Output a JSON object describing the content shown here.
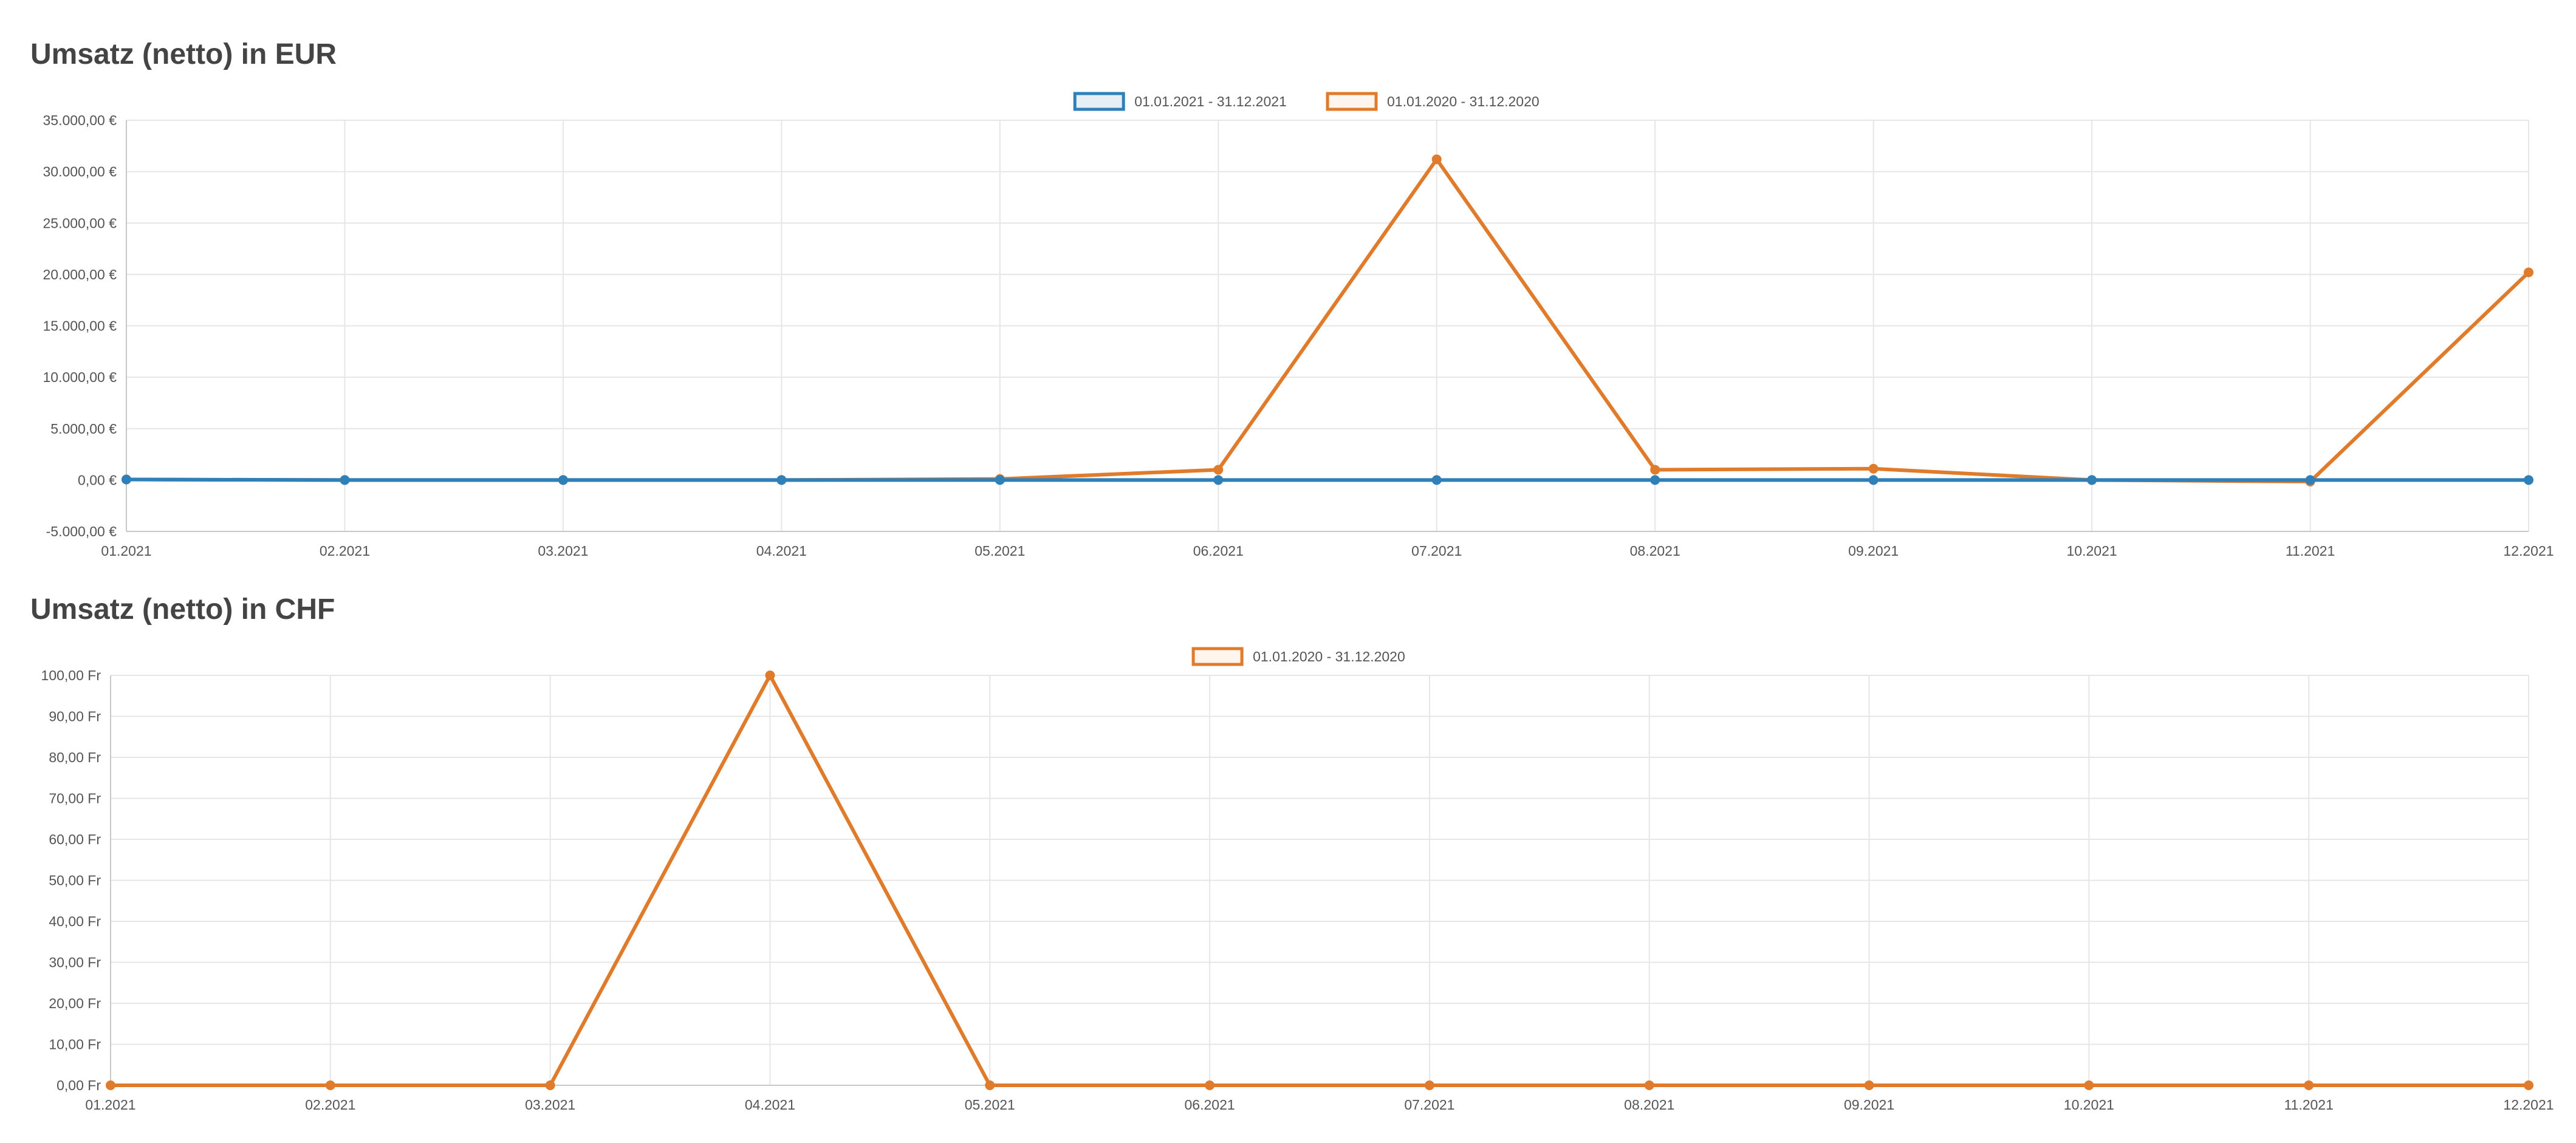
{
  "colors": {
    "series_2021": "#2f7fb8",
    "series_2020": "#e07b2c"
  },
  "chart_data": [
    {
      "type": "line",
      "title": "Umsatz (netto) in EUR",
      "x": [
        "01.2021",
        "02.2021",
        "03.2021",
        "04.2021",
        "05.2021",
        "06.2021",
        "07.2021",
        "08.2021",
        "09.2021",
        "10.2021",
        "11.2021",
        "12.2021"
      ],
      "ylim": [
        -5000,
        35000
      ],
      "yticks": [
        35000,
        30000,
        25000,
        20000,
        15000,
        10000,
        5000,
        0,
        -5000
      ],
      "ytick_labels": [
        "35.000,00 €",
        "30.000,00 €",
        "25.000,00 €",
        "20.000,00 €",
        "15.000,00 €",
        "10.000,00 €",
        "5.000,00 €",
        "0,00 €",
        "-5.000,00 €"
      ],
      "grid": true,
      "legend": "top-center",
      "series": [
        {
          "name": "01.01.2021 - 31.12.2021",
          "color": "#2f7fb8",
          "values": [
            50,
            0,
            0,
            0,
            0,
            0,
            0,
            0,
            0,
            0,
            0,
            0
          ]
        },
        {
          "name": "01.01.2020 - 31.12.2020",
          "color": "#e07b2c",
          "values": [
            50,
            0,
            0,
            0,
            100,
            1000,
            31200,
            1000,
            1100,
            0,
            -150,
            20200
          ]
        }
      ]
    },
    {
      "type": "line",
      "title": "Umsatz (netto) in CHF",
      "x": [
        "01.2021",
        "02.2021",
        "03.2021",
        "04.2021",
        "05.2021",
        "06.2021",
        "07.2021",
        "08.2021",
        "09.2021",
        "10.2021",
        "11.2021",
        "12.2021"
      ],
      "ylim": [
        0,
        100
      ],
      "yticks": [
        100,
        90,
        80,
        70,
        60,
        50,
        40,
        30,
        20,
        10,
        0
      ],
      "ytick_labels": [
        "100,00 Fr",
        "90,00 Fr",
        "80,00 Fr",
        "70,00 Fr",
        "60,00 Fr",
        "50,00 Fr",
        "40,00 Fr",
        "30,00 Fr",
        "20,00 Fr",
        "10,00 Fr",
        "0,00 Fr"
      ],
      "grid": true,
      "legend": "top-center",
      "series": [
        {
          "name": "01.01.2020 - 31.12.2020",
          "color": "#e07b2c",
          "values": [
            0,
            0,
            0,
            100,
            0,
            0,
            0,
            0,
            0,
            0,
            0,
            0
          ]
        }
      ]
    }
  ]
}
